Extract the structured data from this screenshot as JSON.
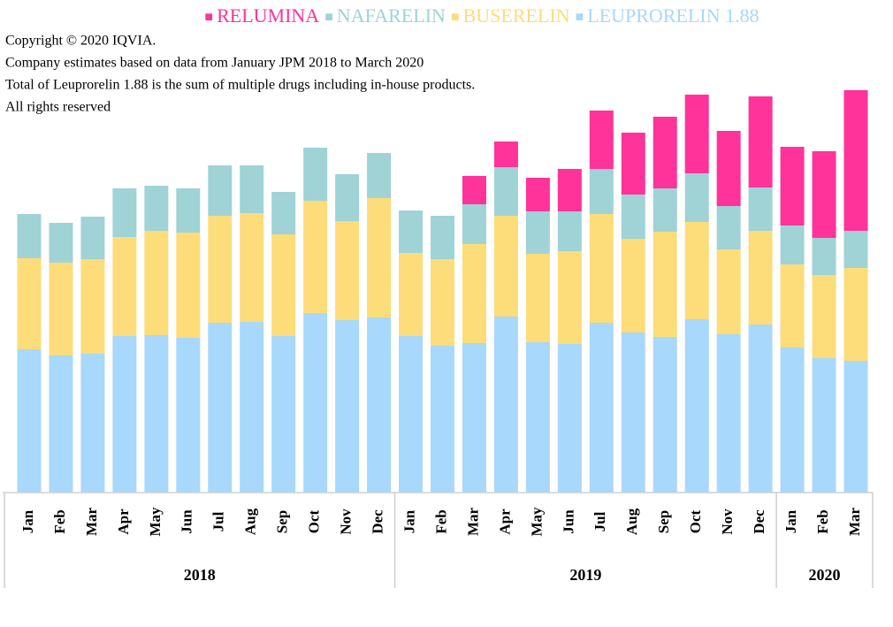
{
  "chart_data": {
    "type": "stacked_bar",
    "notes": [
      "Copyright © 2020 IQVIA.",
      "Company estimates based on data from January JPM 2018 to March 2020",
      "Total of Leuprorelin 1.88 is the sum of multiple drugs including in-house products.",
      "All rights reserved"
    ],
    "groups": [
      {
        "label": "2018",
        "categories": [
          "Jan",
          "Feb",
          "Mar",
          "Apr",
          "May",
          "Jun",
          "Jul",
          "Aug",
          "Sep",
          "Oct",
          "Nov",
          "Dec"
        ]
      },
      {
        "label": "2019",
        "categories": [
          "Jan",
          "Feb",
          "Mar",
          "Apr",
          "May",
          "Jun",
          "Jul",
          "Aug",
          "Sep",
          "Oct",
          "Nov",
          "Dec"
        ]
      },
      {
        "label": "2020",
        "categories": [
          "Jan",
          "Feb",
          "Mar"
        ]
      }
    ],
    "series": [
      {
        "name": "LEUPRORELIN 1.88",
        "color": "#a8d8fb",
        "values": [
          162,
          155,
          157,
          177,
          178,
          175,
          192,
          193,
          177,
          203,
          195,
          198,
          177,
          166,
          169,
          199,
          170,
          168,
          192,
          181,
          176,
          196,
          179,
          190,
          164,
          152,
          149
        ]
      },
      {
        "name": "BUSERELIN",
        "color": "#fddc7a",
        "values": [
          103,
          105,
          107,
          112,
          118,
          119,
          121,
          123,
          115,
          127,
          112,
          135,
          94,
          98,
          112,
          114,
          100,
          105,
          123,
          106,
          119,
          110,
          96,
          106,
          94,
          94,
          105
        ]
      },
      {
        "name": "NAFARELIN",
        "color": "#9fd3d6",
        "values": [
          50,
          45,
          48,
          55,
          51,
          50,
          57,
          54,
          48,
          60,
          53,
          51,
          48,
          49,
          45,
          55,
          48,
          45,
          51,
          50,
          49,
          55,
          49,
          49,
          44,
          42,
          42
        ]
      },
      {
        "name": "RELUMINA",
        "color": "#ff3399",
        "values": [
          0,
          0,
          0,
          0,
          0,
          0,
          0,
          0,
          0,
          0,
          0,
          0,
          0,
          0,
          32,
          29,
          38,
          48,
          66,
          70,
          81,
          89,
          85,
          103,
          89,
          98,
          159
        ]
      }
    ]
  }
}
